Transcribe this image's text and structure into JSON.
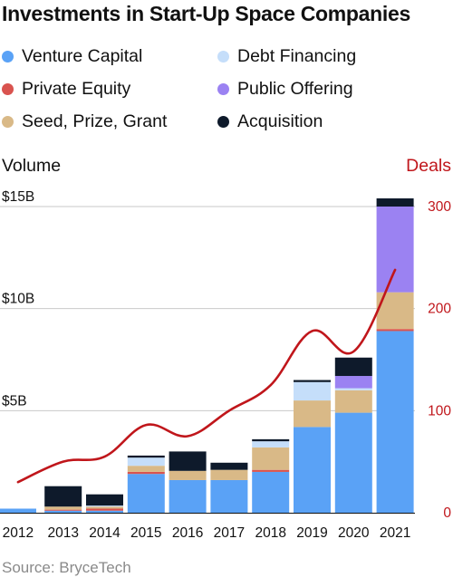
{
  "chart_data": {
    "type": "bar",
    "title": "Investments in Start-Up Space Companies",
    "left_axis_label": "Volume",
    "right_axis_label": "Deals",
    "source": "Source: BryceTech",
    "categories": [
      "2012",
      "2013",
      "2014",
      "2015",
      "2016",
      "2017",
      "2018",
      "2019",
      "2020",
      "2021"
    ],
    "ylim_left": [
      0,
      15
    ],
    "ylim_right": [
      0,
      300
    ],
    "left_ticks": [
      {
        "value": 5,
        "label": "$5B"
      },
      {
        "value": 10,
        "label": "$10B"
      },
      {
        "value": 15,
        "label": "$15B"
      }
    ],
    "right_ticks": [
      {
        "value": 0,
        "label": "0"
      },
      {
        "value": 100,
        "label": "100"
      },
      {
        "value": 200,
        "label": "200"
      },
      {
        "value": 300,
        "label": "300"
      }
    ],
    "grid": true,
    "stacked": true,
    "series": [
      {
        "name": "Venture Capital",
        "color": "#5aa2f6",
        "values": [
          0.2,
          0.1,
          0.1,
          1.9,
          1.6,
          1.6,
          2.0,
          4.2,
          4.9,
          8.9
        ]
      },
      {
        "name": "Private Equity",
        "color": "#d9534f",
        "values": [
          0.0,
          0.05,
          0.1,
          0.1,
          0.0,
          0.0,
          0.1,
          0.0,
          0.0,
          0.1
        ]
      },
      {
        "name": "Seed, Prize, Grant",
        "color": "#d9b987",
        "values": [
          0.0,
          0.15,
          0.1,
          0.3,
          0.45,
          0.5,
          1.1,
          1.3,
          1.1,
          1.8
        ]
      },
      {
        "name": "Debt Financing",
        "color": "#c5defa",
        "values": [
          0.0,
          0.0,
          0.05,
          0.4,
          0.0,
          0.0,
          0.3,
          0.9,
          0.1,
          0.0
        ]
      },
      {
        "name": "Public Offering",
        "color": "#9b82f2",
        "values": [
          0.0,
          0.0,
          0.0,
          0.0,
          0.0,
          0.0,
          0.0,
          0.0,
          0.6,
          4.2
        ]
      },
      {
        "name": "Acquisition",
        "color": "#0e1a2b",
        "values": [
          0.0,
          1.0,
          0.55,
          0.1,
          0.95,
          0.35,
          0.1,
          0.1,
          0.9,
          0.4
        ]
      }
    ],
    "deals": {
      "name": "Deals",
      "color": "#c0161b",
      "values": [
        30,
        50,
        55,
        86,
        75,
        100,
        125,
        178,
        158,
        238
      ]
    }
  },
  "legend_order": [
    "Venture Capital",
    "Debt Financing",
    "Private Equity",
    "Public Offering",
    "Seed, Prize, Grant",
    "Acquisition"
  ]
}
